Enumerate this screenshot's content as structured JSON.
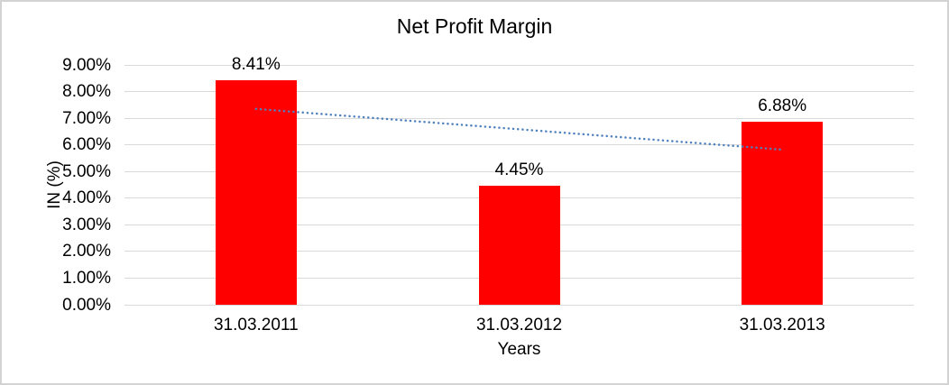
{
  "chart_data": {
    "type": "bar",
    "title": "Net Profit Margin",
    "xlabel": "Years",
    "ylabel": "IN (%)",
    "categories": [
      "31.03.2011",
      "31.03.2012",
      "31.03.2013"
    ],
    "values": [
      8.41,
      4.45,
      6.88
    ],
    "data_labels": [
      "8.41%",
      "4.45%",
      "6.88%"
    ],
    "y_axis": {
      "min": 0,
      "max": 9,
      "step": 1,
      "tick_labels": [
        "0.00%",
        "1.00%",
        "2.00%",
        "3.00%",
        "4.00%",
        "5.00%",
        "6.00%",
        "7.00%",
        "8.00%",
        "9.00%"
      ]
    },
    "grid": "horizontal",
    "legend": "none",
    "colors": {
      "bar": "#ff0000",
      "gridline": "#d9d9d9",
      "axis_line": "#d9d9d9",
      "text": "#000000",
      "trendline": "#4e81bd",
      "chart_border": "#d3d3d3",
      "background": "#ffffff"
    },
    "trendline": {
      "type": "linear",
      "style": "dotted",
      "start_value": 7.35,
      "end_value": 5.82,
      "start_category_index": 0,
      "end_category_index": 2
    }
  }
}
